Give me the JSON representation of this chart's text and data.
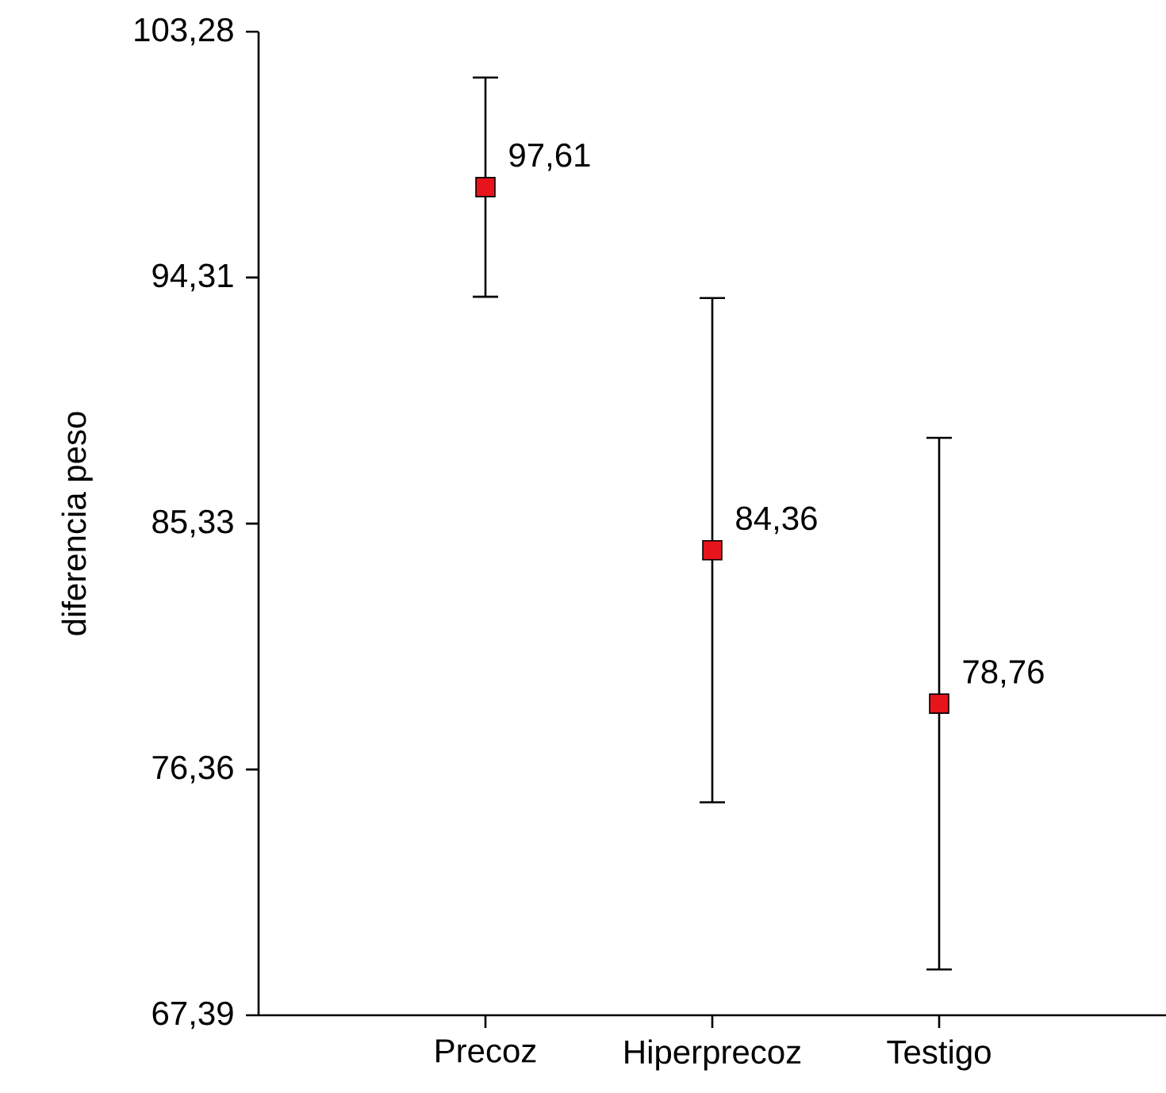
{
  "chart_data": {
    "type": "scatter",
    "ylabel": "diferencia peso",
    "categories": [
      "Precoz",
      "Hiperprecoz",
      "Testigo"
    ],
    "series": [
      {
        "color": "#e8141c",
        "values": [
          97.61,
          84.36,
          78.76
        ],
        "errors": [
          4.0,
          9.2,
          9.7
        ],
        "value_labels": [
          "97,61",
          "84,36",
          "78,76"
        ]
      }
    ],
    "ylim": [
      67.39,
      103.28
    ],
    "yticks": [
      {
        "value": 67.39,
        "label": "67,39"
      },
      {
        "value": 76.36,
        "label": "76,36"
      },
      {
        "value": 85.33,
        "label": "85,33"
      },
      {
        "value": 94.31,
        "label": "94,31"
      },
      {
        "value": 103.28,
        "label": "103,28"
      }
    ],
    "marker": "square",
    "grid": false
  }
}
